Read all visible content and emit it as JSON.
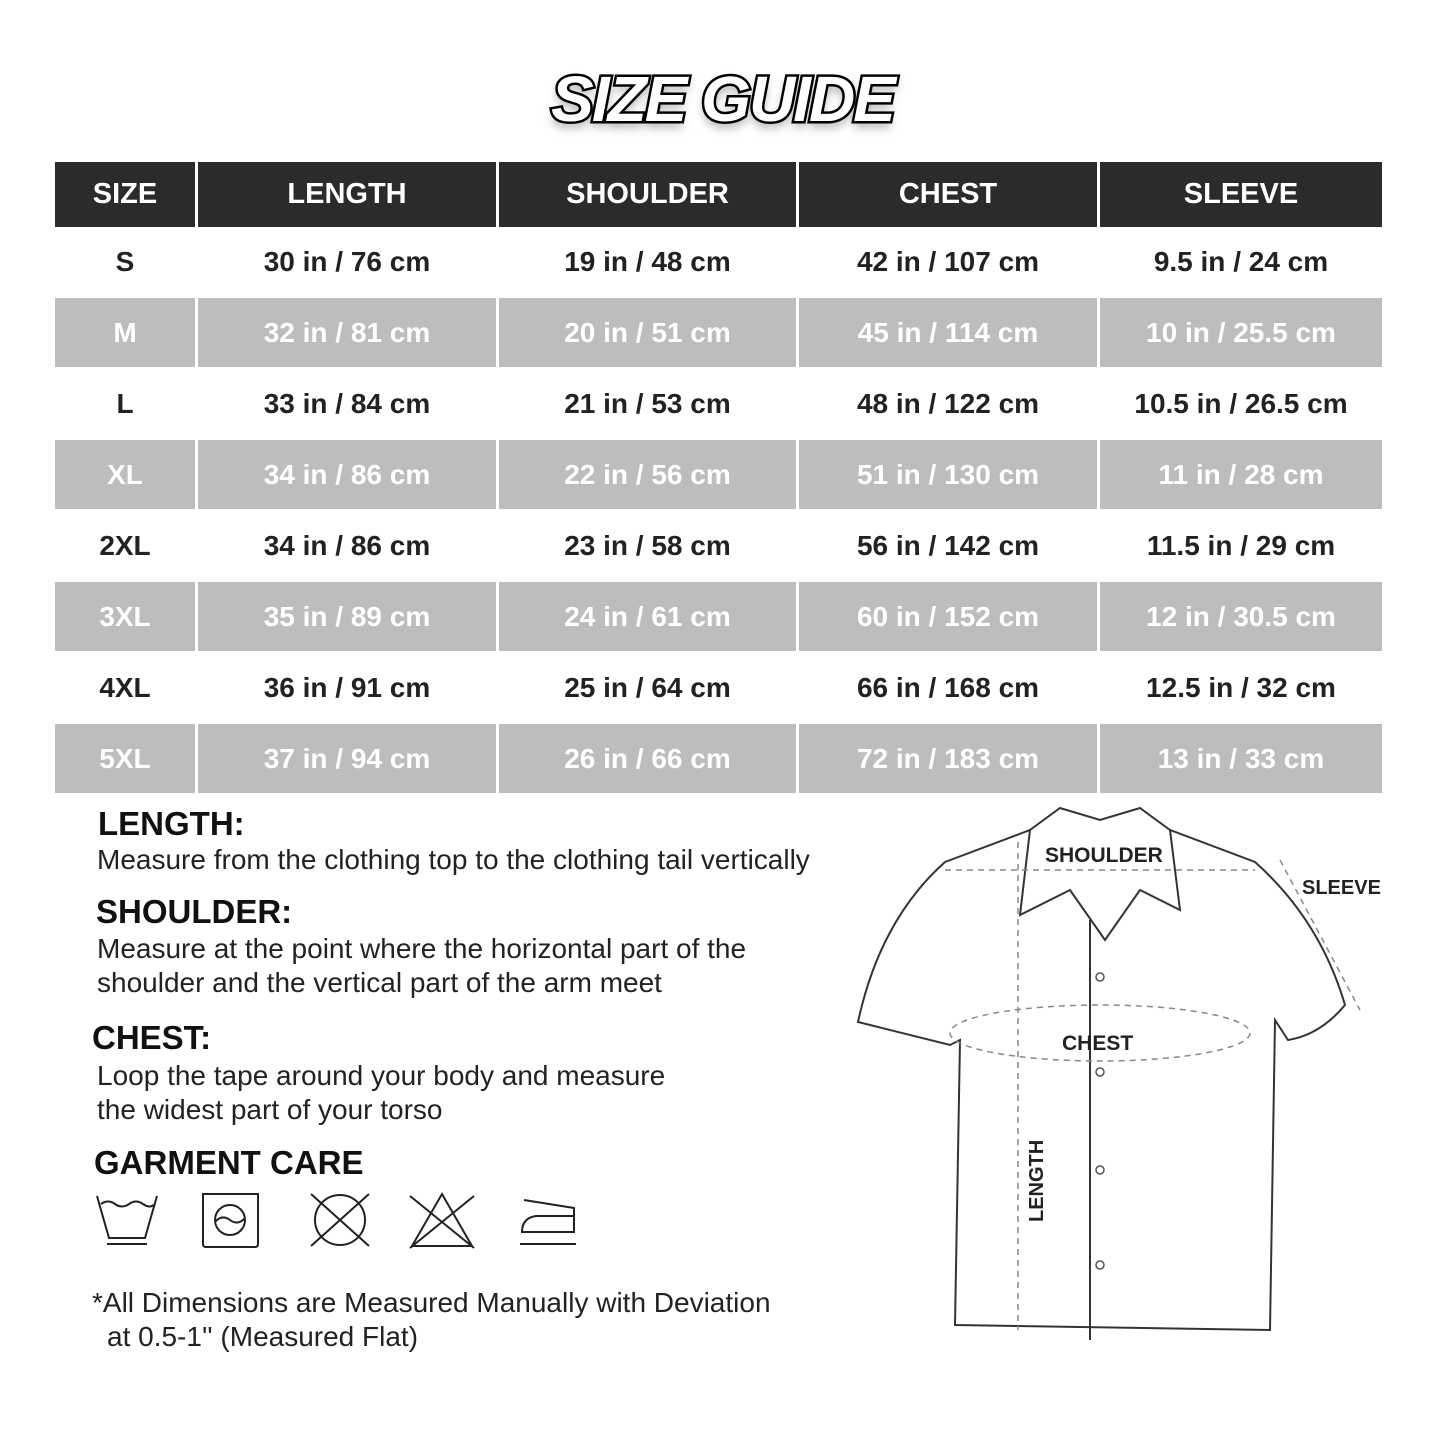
{
  "title": "SIZE GUIDE",
  "table": {
    "headers": [
      "SIZE",
      "LENGTH",
      "SHOULDER",
      "CHEST",
      "SLEEVE"
    ],
    "rows": [
      [
        "S",
        "30 in / 76 cm",
        "19 in / 48 cm",
        "42 in / 107 cm",
        "9.5 in / 24 cm"
      ],
      [
        "M",
        "32 in / 81 cm",
        "20 in / 51 cm",
        "45 in / 114 cm",
        "10 in / 25.5 cm"
      ],
      [
        "L",
        "33 in / 84 cm",
        "21 in / 53 cm",
        "48 in / 122 cm",
        "10.5 in / 26.5 cm"
      ],
      [
        "XL",
        "34 in / 86 cm",
        "22 in / 56 cm",
        "51 in / 130 cm",
        "11 in / 28 cm"
      ],
      [
        "2XL",
        "34 in / 86 cm",
        "23 in / 58 cm",
        "56 in / 142 cm",
        "11.5 in / 29 cm"
      ],
      [
        "3XL",
        "35 in / 89 cm",
        "24 in / 61 cm",
        "60 in / 152 cm",
        "12 in / 30.5 cm"
      ],
      [
        "4XL",
        "36 in / 91 cm",
        "25 in / 64 cm",
        "66 in / 168 cm",
        "12.5 in / 32 cm"
      ],
      [
        "5XL",
        "37 in / 94 cm",
        "26 in / 66 cm",
        "72 in / 183 cm",
        "13 in / 33 cm"
      ]
    ]
  },
  "instructions": {
    "length_heading": "LENGTH:",
    "length_text": "Measure from the clothing top to the clothing tail vertically",
    "shoulder_heading": "SHOULDER:",
    "shoulder_text_1": "Measure at the point where the horizontal part of the",
    "shoulder_text_2": "shoulder and the vertical part of the arm meet",
    "chest_heading": "CHEST:",
    "chest_text_1": "Loop the tape around your body and measure",
    "chest_text_2": "the widest part of your torso",
    "care_heading": "GARMENT CARE",
    "care_icons": [
      "hand-wash-icon",
      "tumble-dry-icon",
      "do-not-dry-clean-icon",
      "do-not-bleach-icon",
      "iron-icon"
    ],
    "note_1": "*All Dimensions are Measured Manually with Deviation",
    "note_2": "at 0.5-1''  (Measured Flat)"
  },
  "diagram": {
    "shoulder": "SHOULDER",
    "sleeve": "SLEEVE",
    "chest": "CHEST",
    "length": "LENGTH"
  },
  "colors": {
    "header_bg": "#2b2b2b",
    "alt_row_bg": "#bdbdbd"
  }
}
